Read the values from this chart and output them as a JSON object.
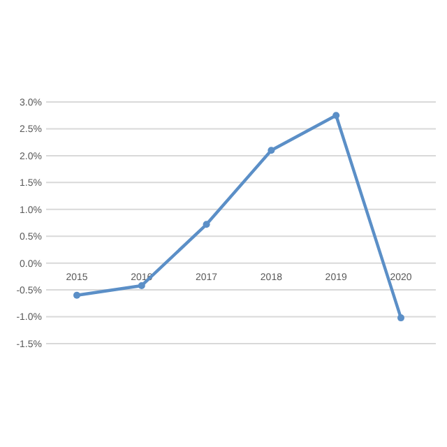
{
  "chart_data": {
    "type": "line",
    "categories": [
      "2015",
      "2016",
      "2017",
      "2018",
      "2019",
      "2020"
    ],
    "series": [
      {
        "color": "#5b8fc7",
        "values": [
          -0.6,
          -0.42,
          0.72,
          2.1,
          2.75,
          -1.02
        ]
      }
    ],
    "ylim": [
      -1.5,
      3
    ],
    "yticks": [
      {
        "value": -1.5,
        "label": "-1.5%"
      },
      {
        "value": -1,
        "label": "-1.0%"
      },
      {
        "value": -0.5,
        "label": "-0.5%"
      },
      {
        "value": 0,
        "label": "0.0%"
      },
      {
        "value": 0.5,
        "label": "0.5%"
      },
      {
        "value": 1,
        "label": "1.0%"
      },
      {
        "value": 1.5,
        "label": "1.5%"
      },
      {
        "value": 2,
        "label": "2.0%"
      },
      {
        "value": 2.5,
        "label": "2.5%"
      },
      {
        "value": 3,
        "label": "3.0%"
      }
    ],
    "grid": "y",
    "marker": "circle",
    "line_style": "solid"
  }
}
